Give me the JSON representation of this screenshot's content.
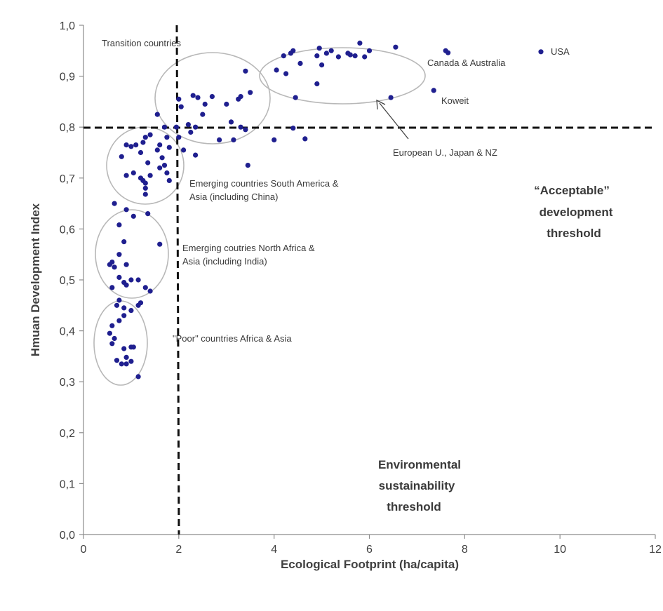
{
  "chart_data": {
    "type": "scatter",
    "title": "",
    "xlabel": "Ecological Footprint (ha/capita)",
    "ylabel": "Hmuan Development Index",
    "xlim": [
      0,
      12
    ],
    "ylim": [
      0,
      1
    ],
    "x_ticks": [
      "0",
      "2",
      "4",
      "6",
      "8",
      "10",
      "12"
    ],
    "y_ticks": [
      "0,0",
      "0,1",
      "0,2",
      "0,3",
      "0,4",
      "0,5",
      "0,6",
      "0,7",
      "0,8",
      "0,9",
      "1,0"
    ],
    "grid": false,
    "marker_color": "#1f1f8f",
    "threshold_lines": {
      "vertical_x": 2.0,
      "horizontal_y": 0.8
    },
    "points": [
      [
        9.6,
        0.948
      ],
      [
        7.6,
        0.95
      ],
      [
        7.65,
        0.946
      ],
      [
        7.35,
        0.872
      ],
      [
        5.8,
        0.965
      ],
      [
        6.0,
        0.95
      ],
      [
        6.55,
        0.957
      ],
      [
        5.55,
        0.945
      ],
      [
        5.6,
        0.942
      ],
      [
        5.9,
        0.938
      ],
      [
        5.7,
        0.94
      ],
      [
        5.35,
        0.938
      ],
      [
        5.1,
        0.945
      ],
      [
        4.95,
        0.955
      ],
      [
        5.2,
        0.95
      ],
      [
        4.9,
        0.94
      ],
      [
        5.0,
        0.922
      ],
      [
        4.4,
        0.95
      ],
      [
        4.35,
        0.945
      ],
      [
        4.2,
        0.94
      ],
      [
        4.55,
        0.925
      ],
      [
        4.05,
        0.912
      ],
      [
        4.25,
        0.905
      ],
      [
        4.9,
        0.885
      ],
      [
        6.45,
        0.858
      ],
      [
        4.45,
        0.858
      ],
      [
        4.4,
        0.798
      ],
      [
        4.65,
        0.777
      ],
      [
        4.0,
        0.775
      ],
      [
        3.4,
        0.91
      ],
      [
        3.5,
        0.868
      ],
      [
        3.3,
        0.86
      ],
      [
        3.25,
        0.855
      ],
      [
        3.1,
        0.81
      ],
      [
        3.3,
        0.8
      ],
      [
        3.4,
        0.795
      ],
      [
        3.0,
        0.845
      ],
      [
        3.15,
        0.775
      ],
      [
        2.85,
        0.775
      ],
      [
        3.45,
        0.725
      ],
      [
        2.7,
        0.86
      ],
      [
        2.55,
        0.845
      ],
      [
        2.5,
        0.825
      ],
      [
        2.3,
        0.862
      ],
      [
        2.4,
        0.858
      ],
      [
        2.35,
        0.8
      ],
      [
        2.2,
        0.805
      ],
      [
        2.25,
        0.79
      ],
      [
        2.05,
        0.84
      ],
      [
        2.0,
        0.855
      ],
      [
        1.95,
        0.8
      ],
      [
        2.0,
        0.78
      ],
      [
        2.1,
        0.755
      ],
      [
        2.35,
        0.745
      ],
      [
        1.55,
        0.825
      ],
      [
        1.7,
        0.8
      ],
      [
        1.75,
        0.78
      ],
      [
        1.8,
        0.76
      ],
      [
        1.6,
        0.765
      ],
      [
        1.55,
        0.755
      ],
      [
        1.65,
        0.74
      ],
      [
        1.7,
        0.725
      ],
      [
        1.75,
        0.71
      ],
      [
        1.8,
        0.695
      ],
      [
        1.4,
        0.785
      ],
      [
        1.3,
        0.78
      ],
      [
        1.25,
        0.77
      ],
      [
        1.1,
        0.765
      ],
      [
        1.0,
        0.762
      ],
      [
        0.9,
        0.765
      ],
      [
        0.8,
        0.742
      ],
      [
        1.2,
        0.75
      ],
      [
        1.35,
        0.73
      ],
      [
        1.6,
        0.72
      ],
      [
        1.05,
        0.71
      ],
      [
        0.9,
        0.705
      ],
      [
        1.2,
        0.7
      ],
      [
        1.25,
        0.695
      ],
      [
        1.3,
        0.69
      ],
      [
        1.3,
        0.68
      ],
      [
        1.3,
        0.668
      ],
      [
        1.4,
        0.705
      ],
      [
        0.65,
        0.65
      ],
      [
        0.9,
        0.638
      ],
      [
        1.05,
        0.625
      ],
      [
        1.35,
        0.63
      ],
      [
        0.75,
        0.608
      ],
      [
        1.6,
        0.57
      ],
      [
        0.85,
        0.575
      ],
      [
        0.75,
        0.55
      ],
      [
        0.9,
        0.53
      ],
      [
        0.55,
        0.53
      ],
      [
        0.6,
        0.535
      ],
      [
        0.65,
        0.525
      ],
      [
        0.75,
        0.505
      ],
      [
        0.85,
        0.495
      ],
      [
        0.9,
        0.49
      ],
      [
        1.0,
        0.5
      ],
      [
        1.15,
        0.5
      ],
      [
        1.3,
        0.485
      ],
      [
        0.6,
        0.485
      ],
      [
        1.4,
        0.478
      ],
      [
        0.75,
        0.46
      ],
      [
        0.7,
        0.45
      ],
      [
        1.15,
        0.45
      ],
      [
        1.2,
        0.455
      ],
      [
        0.85,
        0.445
      ],
      [
        1.0,
        0.44
      ],
      [
        0.85,
        0.43
      ],
      [
        0.75,
        0.42
      ],
      [
        0.6,
        0.41
      ],
      [
        0.55,
        0.395
      ],
      [
        0.65,
        0.385
      ],
      [
        0.6,
        0.375
      ],
      [
        0.85,
        0.365
      ],
      [
        1.0,
        0.368
      ],
      [
        1.05,
        0.368
      ],
      [
        0.9,
        0.348
      ],
      [
        0.7,
        0.342
      ],
      [
        0.8,
        0.335
      ],
      [
        0.9,
        0.335
      ],
      [
        1.0,
        0.34
      ],
      [
        1.15,
        0.31
      ]
    ],
    "annotations": {
      "transition": "Transition countries",
      "usa": "USA",
      "canada": "Canada & Australia",
      "koweit": "Koweit",
      "eu": "European U., Japan & NZ",
      "emerging_sa_1": "Emerging countries South America &",
      "emerging_sa_2": "Asia (including China)",
      "emerging_na_1": "Emerging coutries  North Africa &",
      "emerging_na_2": "Asia (including India)",
      "poor": "\"Poor\" countries Africa & Asia",
      "acceptable_1": "“Acceptable”",
      "acceptable_2": "development",
      "acceptable_3": "threshold",
      "env_1": "Environmental",
      "env_2": "sustainability",
      "env_3": "threshold"
    }
  }
}
